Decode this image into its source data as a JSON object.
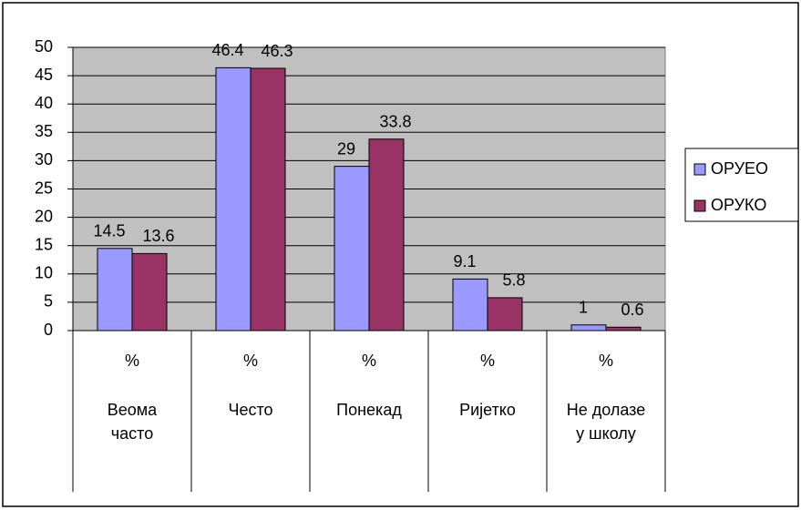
{
  "chart_data": {
    "type": "bar",
    "categories": [
      [
        "%",
        "Веома часто"
      ],
      [
        "%",
        "Често"
      ],
      [
        "%",
        "Понекад"
      ],
      [
        "%",
        "Ријетко"
      ],
      [
        "%",
        "Не долазе у школу"
      ]
    ],
    "series": [
      {
        "name": "ОРУЕО",
        "color": "#9999ff",
        "values": [
          14.5,
          46.4,
          29,
          9.1,
          1
        ]
      },
      {
        "name": "ОРУКО",
        "color": "#993366",
        "values": [
          13.6,
          46.3,
          33.8,
          5.8,
          0.6
        ]
      }
    ],
    "ylim": [
      0,
      50
    ],
    "yticks": [
      0,
      5,
      10,
      15,
      20,
      25,
      30,
      35,
      40,
      45,
      50
    ],
    "grid": true,
    "legend": "right"
  }
}
